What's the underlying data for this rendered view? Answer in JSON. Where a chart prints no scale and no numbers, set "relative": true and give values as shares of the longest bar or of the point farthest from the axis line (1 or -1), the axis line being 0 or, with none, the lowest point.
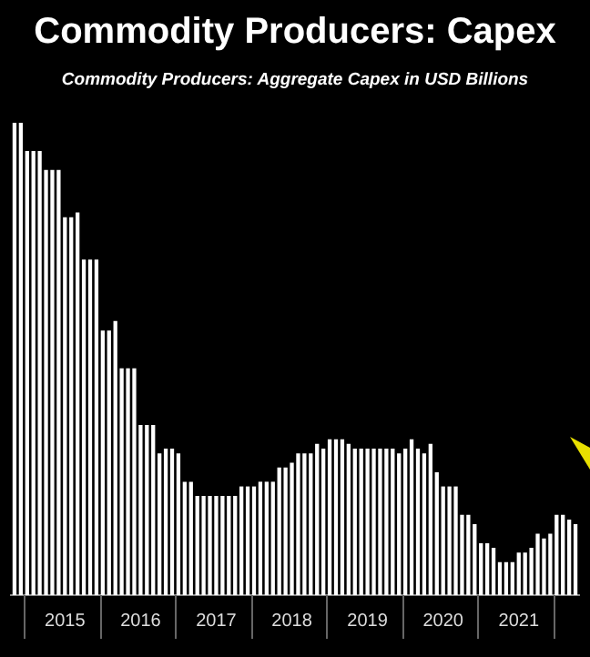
{
  "chart_data": {
    "type": "bar",
    "title": "Commodity Producers: Capex",
    "subtitle": "Commodity Producers: Aggregate Capex in USD Billions",
    "relative": true,
    "color": "#ffffff",
    "categories": [
      null,
      null,
      null,
      null,
      null,
      null,
      null,
      null,
      "2015",
      null,
      null,
      null,
      null,
      null,
      null,
      null,
      null,
      null,
      null,
      null,
      "2016",
      null,
      null,
      null,
      null,
      null,
      null,
      null,
      null,
      null,
      null,
      null,
      "2017",
      null,
      null,
      null,
      null,
      null,
      null,
      null,
      null,
      null,
      null,
      null,
      "2018",
      null,
      null,
      null,
      null,
      null,
      null,
      null,
      null,
      null,
      null,
      null,
      "2019",
      null,
      null,
      null,
      null,
      null,
      null,
      null,
      null,
      null,
      null,
      null,
      "2020",
      null,
      null,
      null,
      null,
      null,
      null,
      null,
      null,
      null,
      null,
      null,
      "2021",
      null,
      null,
      null,
      null,
      null,
      null,
      null,
      null,
      null
    ],
    "values": [
      1.0,
      1.0,
      0.94,
      0.94,
      0.94,
      0.9,
      0.9,
      0.9,
      0.8,
      0.8,
      0.81,
      0.71,
      0.71,
      0.71,
      0.56,
      0.56,
      0.58,
      0.48,
      0.48,
      0.48,
      0.36,
      0.36,
      0.36,
      0.3,
      0.31,
      0.31,
      0.3,
      0.24,
      0.24,
      0.21,
      0.21,
      0.21,
      0.21,
      0.21,
      0.21,
      0.21,
      0.23,
      0.23,
      0.23,
      0.24,
      0.24,
      0.24,
      0.27,
      0.27,
      0.28,
      0.3,
      0.3,
      0.3,
      0.32,
      0.31,
      0.33,
      0.33,
      0.33,
      0.32,
      0.31,
      0.31,
      0.31,
      0.31,
      0.31,
      0.31,
      0.31,
      0.3,
      0.31,
      0.33,
      0.31,
      0.3,
      0.32,
      0.26,
      0.23,
      0.23,
      0.23,
      0.17,
      0.17,
      0.15,
      0.11,
      0.11,
      0.1,
      0.07,
      0.07,
      0.07,
      0.09,
      0.09,
      0.1,
      0.13,
      0.12,
      0.13,
      0.17,
      0.17,
      0.16,
      0.15
    ],
    "legend": false
  }
}
